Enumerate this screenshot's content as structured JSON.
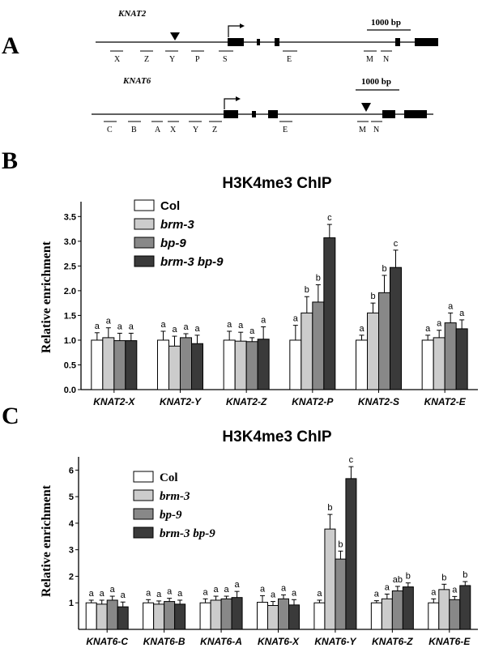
{
  "panel_labels": [
    "A",
    "B",
    "C"
  ],
  "gene_maps": [
    {
      "gene": "KNAT2",
      "scale_label": "1000 bp",
      "regions": [
        "X",
        "Z",
        "Y",
        "P",
        "S",
        "E",
        "M",
        "N"
      ]
    },
    {
      "gene": "KNAT6",
      "scale_label": "1000 bp",
      "regions": [
        "C",
        "B",
        "A",
        "X",
        "Y",
        "Z",
        "E",
        "M",
        "N"
      ]
    }
  ],
  "colors": {
    "Col": "#ffffff",
    "brm-3": "#cccccc",
    "bp-9": "#888888",
    "brm-3 bp-9": "#3a3a3a",
    "axis": "#000000"
  },
  "chart_data": [
    {
      "type": "bar",
      "title": "H3K4me3 ChIP",
      "ylabel": "Relative enrichment",
      "xlabel": "",
      "ylim": [
        0,
        3.8
      ],
      "yticks": [
        "0.0",
        "0.5",
        "1.0",
        "1.5",
        "2.0",
        "2.5",
        "3.0",
        "3.5"
      ],
      "categories": [
        "KNAT2-X",
        "KNAT2-Y",
        "KNAT2-Z",
        "KNAT2-P",
        "KNAT2-S",
        "KNAT2-E"
      ],
      "legend_position": "top-left",
      "series": [
        {
          "name": "Col",
          "values": [
            1.0,
            1.0,
            1.0,
            1.0,
            1.0,
            1.0
          ],
          "errors": [
            0.15,
            0.18,
            0.18,
            0.3,
            0.1,
            0.1
          ],
          "labels": [
            "a",
            "a",
            "a",
            "a",
            "a",
            "a"
          ]
        },
        {
          "name": "brm-3",
          "values": [
            1.05,
            0.88,
            0.98,
            1.55,
            1.55,
            1.05
          ],
          "errors": [
            0.2,
            0.2,
            0.18,
            0.33,
            0.2,
            0.15
          ],
          "labels": [
            "a",
            "a",
            "a",
            "b",
            "b",
            "a"
          ]
        },
        {
          "name": "bp-9",
          "values": [
            0.99,
            1.05,
            0.97,
            1.77,
            1.96,
            1.35
          ],
          "errors": [
            0.15,
            0.08,
            0.08,
            0.35,
            0.35,
            0.2
          ],
          "labels": [
            "a",
            "a",
            "a",
            "b",
            "b",
            "a"
          ]
        },
        {
          "name": "brm-3 bp-9",
          "values": [
            0.99,
            0.93,
            1.02,
            3.07,
            2.47,
            1.23
          ],
          "errors": [
            0.15,
            0.17,
            0.25,
            0.27,
            0.35,
            0.18
          ],
          "labels": [
            "a",
            "a",
            "a",
            "c",
            "c",
            "a"
          ]
        }
      ]
    },
    {
      "type": "bar",
      "title": "H3K4me3 ChIP",
      "ylabel": "Relative enrichment",
      "xlabel": "",
      "ylim": [
        0,
        6.5
      ],
      "yticks": [
        "1",
        "2",
        "3",
        "4",
        "5",
        "6"
      ],
      "categories": [
        "KNAT6-C",
        "KNAT6-B",
        "KNAT6-A",
        "KNAT6-X",
        "KNAT6-Y",
        "KNAT6-Z",
        "KNAT6-E"
      ],
      "legend_position": "top-left",
      "series": [
        {
          "name": "Col",
          "values": [
            1.0,
            1.0,
            1.0,
            1.02,
            1.0,
            1.0,
            1.0
          ],
          "errors": [
            0.1,
            0.12,
            0.15,
            0.25,
            0.1,
            0.08,
            0.15
          ],
          "labels": [
            "a",
            "a",
            "a",
            "a",
            "a",
            "a",
            "a"
          ]
        },
        {
          "name": "brm-3",
          "values": [
            0.95,
            0.95,
            1.1,
            0.9,
            3.78,
            1.15,
            1.5
          ],
          "errors": [
            0.15,
            0.12,
            0.15,
            0.15,
            0.55,
            0.18,
            0.2
          ],
          "labels": [
            "a",
            "a",
            "a",
            "a",
            "b",
            "a",
            "b"
          ]
        },
        {
          "name": "bp-9",
          "values": [
            1.1,
            1.05,
            1.15,
            1.15,
            2.65,
            1.45,
            1.12
          ],
          "errors": [
            0.15,
            0.12,
            0.1,
            0.15,
            0.3,
            0.17,
            0.12
          ],
          "labels": [
            "a",
            "a",
            "a",
            "a",
            "b",
            "ab",
            "a"
          ]
        },
        {
          "name": "brm-3 bp-9",
          "values": [
            0.85,
            0.95,
            1.2,
            0.92,
            5.68,
            1.6,
            1.65
          ],
          "errors": [
            0.18,
            0.15,
            0.23,
            0.2,
            0.45,
            0.15,
            0.15
          ],
          "labels": [
            "a",
            "a",
            "a",
            "a",
            "c",
            "b",
            "b"
          ]
        }
      ]
    }
  ]
}
